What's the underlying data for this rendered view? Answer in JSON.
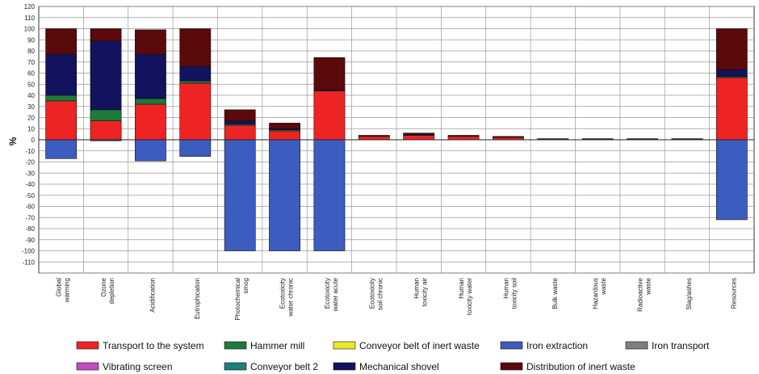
{
  "chart_data": {
    "type": "bar",
    "stacked": true,
    "ylabel": "%",
    "xlabel": "",
    "title": "",
    "ylim": [
      -120,
      120
    ],
    "yticks": [
      120,
      110,
      100,
      90,
      80,
      70,
      60,
      50,
      40,
      30,
      20,
      10,
      0,
      -10,
      -20,
      -30,
      -40,
      -50,
      -60,
      -70,
      -80,
      -90,
      -100,
      -110
    ],
    "grid": true,
    "legend_position": "bottom",
    "categories": [
      [
        "Global",
        "warming"
      ],
      [
        "Ozone",
        "depletion"
      ],
      [
        "Acidification"
      ],
      [
        "Eutrophication"
      ],
      [
        "Photochemical",
        "smog"
      ],
      [
        "Ecotoxicity",
        "water chronic"
      ],
      [
        "Ecotoxicity",
        "water acute"
      ],
      [
        "Ecotoxicity",
        "soil chronic"
      ],
      [
        "Human",
        "toxicity air"
      ],
      [
        "Human",
        "toxicity water"
      ],
      [
        "Human",
        "toxicity soil"
      ],
      [
        "Bulk waste"
      ],
      [
        "Hazardous",
        "waste"
      ],
      [
        "Radioactive",
        "waste"
      ],
      [
        "Slag/ashes"
      ],
      [
        "Resources"
      ]
    ],
    "series": [
      {
        "name": "Iron extraction",
        "color": "#3d5cbf",
        "values": [
          -17,
          -1,
          -19,
          -15,
          -100,
          -100,
          -100,
          0,
          0,
          0,
          0,
          0,
          0,
          0,
          0,
          -72
        ]
      },
      {
        "name": "Transport to the system",
        "color": "#ee2424",
        "values": [
          35,
          17,
          32,
          51,
          13,
          8,
          44,
          3,
          4,
          3,
          2,
          0,
          0,
          0,
          0,
          56
        ]
      },
      {
        "name": "Hammer mill",
        "color": "#1e7a3a",
        "values": [
          5,
          10,
          5,
          2,
          1,
          1,
          0,
          0,
          0,
          0,
          0,
          0,
          0,
          0,
          0,
          1
        ]
      },
      {
        "name": "Conveyor belt of inert waste",
        "color": "#e8e82a",
        "values": [
          0,
          0,
          0,
          0,
          0,
          0,
          0,
          0,
          0,
          0,
          0,
          0,
          0,
          0,
          0,
          0
        ]
      },
      {
        "name": "Iron transport",
        "color": "#7f7f7f",
        "values": [
          0,
          0,
          0,
          0,
          0,
          0,
          0,
          0,
          0,
          0,
          0,
          0,
          0,
          0,
          0,
          0
        ]
      },
      {
        "name": "Vibrating screen",
        "color": "#c14fc1",
        "values": [
          0,
          0,
          0,
          0,
          0,
          0,
          0,
          0,
          0,
          0,
          0,
          0,
          0,
          0,
          0,
          0
        ]
      },
      {
        "name": "Conveyor belt 2",
        "color": "#1f7d7d",
        "values": [
          0,
          0,
          0,
          0,
          0,
          0,
          0,
          0,
          0,
          0,
          0,
          0,
          0,
          0,
          0,
          0
        ]
      },
      {
        "name": "Mechanical shovel",
        "color": "#12125e",
        "values": [
          37,
          62,
          40,
          13,
          3,
          1,
          1,
          0,
          1,
          0,
          0,
          0,
          0,
          0,
          0,
          6
        ]
      },
      {
        "name": "Distribution of inert waste",
        "color": "#5a0a0a",
        "values": [
          23,
          11,
          22,
          34,
          10,
          5,
          29,
          1,
          1,
          1,
          1,
          1,
          1,
          1,
          1,
          37
        ]
      }
    ],
    "legend": [
      {
        "name": "Transport to the system",
        "color": "#ee2424"
      },
      {
        "name": "Hammer mill",
        "color": "#1e7a3a"
      },
      {
        "name": "Conveyor belt of inert waste",
        "color": "#e8e82a"
      },
      {
        "name": "Iron extraction",
        "color": "#3d5cbf"
      },
      {
        "name": "Iron transport",
        "color": "#7f7f7f"
      },
      {
        "name": "Vibrating screen",
        "color": "#c14fc1"
      },
      {
        "name": "Conveyor belt 2",
        "color": "#1f7d7d"
      },
      {
        "name": "Mechanical shovel",
        "color": "#12125e"
      },
      {
        "name": "Distribution of inert waste",
        "color": "#5a0a0a"
      }
    ]
  }
}
